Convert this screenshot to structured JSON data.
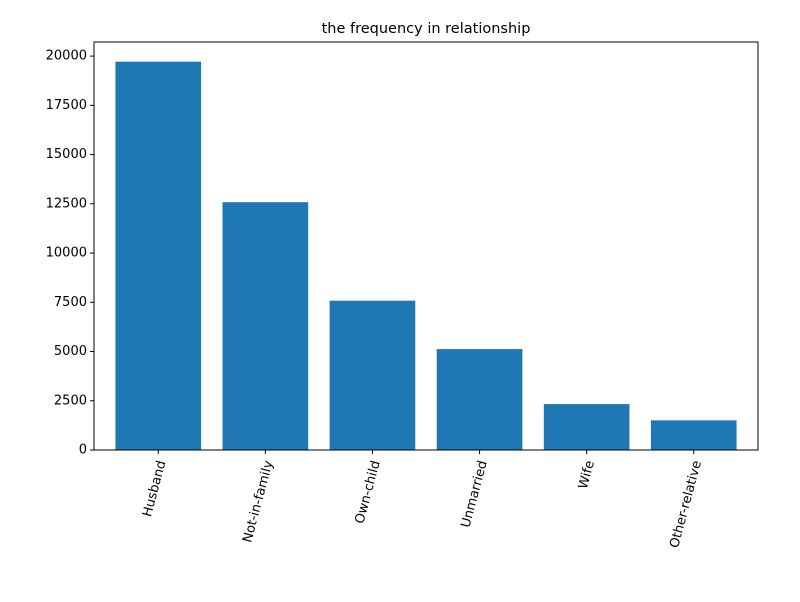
{
  "chart_data": {
    "type": "bar",
    "title": "the frequency in relationship",
    "xlabel": "",
    "ylabel": "",
    "categories": [
      "Husband",
      "Not-in-family",
      "Own-child",
      "Unmarried",
      "Wife",
      "Other-relative"
    ],
    "values": [
      19716,
      12583,
      7581,
      5125,
      2331,
      1506
    ],
    "ylim": [
      0,
      20716
    ],
    "yticks": [
      0,
      2500,
      5000,
      7500,
      10000,
      12500,
      15000,
      17500,
      20000
    ],
    "ytick_labels": [
      "0",
      "2500",
      "5000",
      "7500",
      "10000",
      "12500",
      "15000",
      "17500",
      "20000"
    ],
    "bar_color": "#1f77b4",
    "grid": false,
    "xtick_rotation_deg": 75
  }
}
